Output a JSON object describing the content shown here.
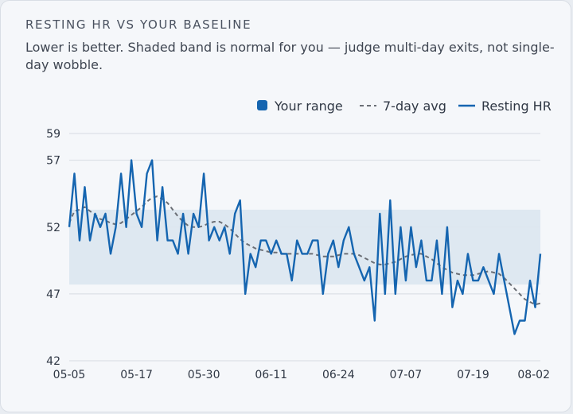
{
  "title": "RESTING HR VS YOUR BASELINE",
  "subtitle": "Lower is better. Shaded band is normal for you — judge multi-day exits, not single-day wobble.",
  "colors": {
    "hr_line": "#1565b0",
    "avg_line": "#6b6f76",
    "band_fill": "#dbe6f0",
    "grid": "#d6dbe2"
  },
  "chart_data": {
    "type": "line",
    "title": "RESTING HR VS YOUR BASELINE",
    "xlabel": "",
    "ylabel": "",
    "ylim": [
      42,
      59
    ],
    "yticks": [
      42,
      47,
      52,
      57,
      59
    ],
    "xtick_labels": [
      "05-05",
      "05-17",
      "05-30",
      "06-11",
      "06-24",
      "07-07",
      "07-19",
      "08-02"
    ],
    "x_start": "05-05",
    "x_end": "08-02",
    "grid": "horizontal",
    "legend_position": "top-right",
    "legend": [
      "Your range",
      "7-day avg",
      "Resting HR"
    ],
    "band": {
      "name": "Your range",
      "low": 47.7,
      "high": 53.3
    },
    "series": [
      {
        "name": "Resting HR",
        "style": "solid",
        "values": [
          52,
          56,
          51,
          55,
          51,
          53,
          52,
          53,
          50,
          52,
          56,
          52,
          57,
          53,
          52,
          56,
          57,
          51,
          55,
          51,
          51,
          50,
          53,
          50,
          53,
          52,
          56,
          51,
          52,
          51,
          52,
          50,
          53,
          54,
          47,
          50,
          49,
          51,
          51,
          50,
          51,
          50,
          50,
          48,
          51,
          50,
          50,
          51,
          51,
          47,
          50,
          51,
          49,
          51,
          52,
          50,
          49,
          48,
          49,
          45,
          53,
          47,
          54,
          47,
          52,
          48,
          52,
          49,
          51,
          48,
          48,
          51,
          47,
          52,
          46,
          48,
          47,
          50,
          48,
          48,
          49,
          48,
          47,
          50,
          48,
          46,
          44,
          45,
          45,
          48,
          46,
          50
        ]
      },
      {
        "name": "7-day avg",
        "style": "dashed",
        "values": [
          52.3,
          53.2,
          53.3,
          53.5,
          53.2,
          52.9,
          52.6,
          52.5,
          52.3,
          52.2,
          52.3,
          52.6,
          52.9,
          53.2,
          53.5,
          53.9,
          54.2,
          54.3,
          54.1,
          53.8,
          53.3,
          52.8,
          52.4,
          52.1,
          52.0,
          52.0,
          52.1,
          52.3,
          52.4,
          52.4,
          52.2,
          51.9,
          51.5,
          51.1,
          50.8,
          50.6,
          50.4,
          50.3,
          50.2,
          50.1,
          50.1,
          50.0,
          50.0,
          50.0,
          50.0,
          50.0,
          50.0,
          50.0,
          49.9,
          49.8,
          49.8,
          49.8,
          49.9,
          50.0,
          50.0,
          50.0,
          49.9,
          49.7,
          49.5,
          49.3,
          49.2,
          49.2,
          49.3,
          49.4,
          49.6,
          49.8,
          49.9,
          50.0,
          50.0,
          49.8,
          49.6,
          49.3,
          49.0,
          48.8,
          48.6,
          48.5,
          48.4,
          48.4,
          48.4,
          48.5,
          48.6,
          48.7,
          48.6,
          48.5,
          48.2,
          47.8,
          47.4,
          47.0,
          46.6,
          46.4,
          46.2,
          46.3
        ]
      }
    ]
  }
}
